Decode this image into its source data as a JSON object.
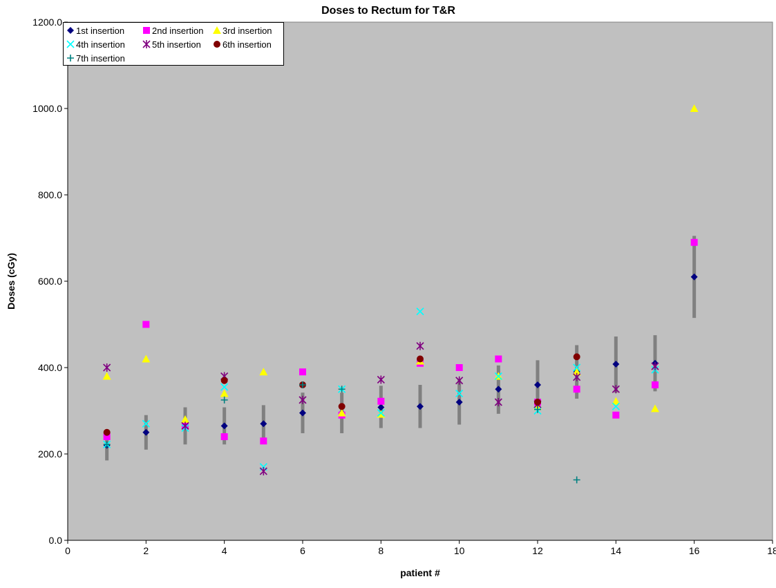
{
  "chart_data": {
    "type": "scatter",
    "title": "Doses to Rectum for T&R",
    "xlabel": "patient #",
    "ylabel": "Doses (cGy)",
    "xlim": [
      0,
      18
    ],
    "ylim": [
      0,
      1200
    ],
    "x_ticks": [
      "0",
      "2",
      "4",
      "6",
      "8",
      "10",
      "12",
      "14",
      "16",
      "18"
    ],
    "y_ticks": [
      "0.0",
      "200.0",
      "400.0",
      "600.0",
      "800.0",
      "1000.0",
      "1200.0"
    ],
    "grid": false,
    "legend_position": "top-left",
    "plot_background": "#c0c0c0",
    "error_bar_color": "#808080",
    "error_bars": [
      {
        "x": 1,
        "low": 185,
        "high": 255
      },
      {
        "x": 2,
        "low": 210,
        "high": 290
      },
      {
        "x": 3,
        "low": 222,
        "high": 308
      },
      {
        "x": 4,
        "low": 222,
        "high": 308
      },
      {
        "x": 5,
        "low": 225,
        "high": 313
      },
      {
        "x": 6,
        "low": 248,
        "high": 342
      },
      {
        "x": 7,
        "low": 248,
        "high": 342
      },
      {
        "x": 8,
        "low": 260,
        "high": 358
      },
      {
        "x": 9,
        "low": 260,
        "high": 360
      },
      {
        "x": 10,
        "low": 268,
        "high": 372
      },
      {
        "x": 11,
        "low": 293,
        "high": 405
      },
      {
        "x": 12,
        "low": 303,
        "high": 417
      },
      {
        "x": 13,
        "low": 328,
        "high": 452
      },
      {
        "x": 14,
        "low": 342,
        "high": 472
      },
      {
        "x": 15,
        "low": 345,
        "high": 475
      },
      {
        "x": 16,
        "low": 515,
        "high": 705
      }
    ],
    "series": [
      {
        "name": "1st insertion",
        "marker": "diamond",
        "color": "#000080",
        "points": [
          [
            1,
            220
          ],
          [
            2,
            250
          ],
          [
            3,
            270
          ],
          [
            4,
            265
          ],
          [
            5,
            270
          ],
          [
            6,
            295
          ],
          [
            7,
            295
          ],
          [
            8,
            308
          ],
          [
            9,
            310
          ],
          [
            10,
            320
          ],
          [
            11,
            350
          ],
          [
            12,
            360
          ],
          [
            13,
            390
          ],
          [
            14,
            408
          ],
          [
            15,
            410
          ],
          [
            16,
            610
          ]
        ]
      },
      {
        "name": "2nd insertion",
        "marker": "square",
        "color": "#ff00ff",
        "points": [
          [
            1,
            240
          ],
          [
            2,
            500
          ],
          [
            3,
            265
          ],
          [
            4,
            240
          ],
          [
            5,
            230
          ],
          [
            6,
            390
          ],
          [
            7,
            290
          ],
          [
            8,
            322
          ],
          [
            9,
            410
          ],
          [
            10,
            400
          ],
          [
            11,
            420
          ],
          [
            12,
            320
          ],
          [
            13,
            350
          ],
          [
            14,
            290
          ],
          [
            15,
            360
          ],
          [
            16,
            690
          ]
        ]
      },
      {
        "name": "3rd insertion",
        "marker": "triangle",
        "color": "#ffff00",
        "points": [
          [
            1,
            380
          ],
          [
            2,
            420
          ],
          [
            3,
            280
          ],
          [
            4,
            340
          ],
          [
            5,
            390
          ],
          [
            7,
            295
          ],
          [
            8,
            292
          ],
          [
            9,
            415
          ],
          [
            11,
            380
          ],
          [
            12,
            310
          ],
          [
            13,
            390
          ],
          [
            14,
            322
          ],
          [
            15,
            305
          ],
          [
            16,
            1000
          ]
        ]
      },
      {
        "name": "4th insertion",
        "marker": "x",
        "color": "#00ffff",
        "points": [
          [
            1,
            222
          ],
          [
            2,
            270
          ],
          [
            3,
            260
          ],
          [
            4,
            355
          ],
          [
            5,
            170
          ],
          [
            7,
            350
          ],
          [
            8,
            295
          ],
          [
            9,
            530
          ],
          [
            10,
            340
          ],
          [
            11,
            380
          ],
          [
            12,
            300
          ],
          [
            13,
            400
          ],
          [
            14,
            310
          ],
          [
            15,
            395
          ]
        ]
      },
      {
        "name": "5th insertion",
        "marker": "star",
        "color": "#800080",
        "points": [
          [
            1,
            400
          ],
          [
            3,
            265
          ],
          [
            4,
            380
          ],
          [
            5,
            160
          ],
          [
            6,
            325
          ],
          [
            8,
            372
          ],
          [
            9,
            450
          ],
          [
            10,
            370
          ],
          [
            11,
            320
          ],
          [
            12,
            315
          ],
          [
            13,
            378
          ],
          [
            14,
            350
          ],
          [
            15,
            403
          ]
        ]
      },
      {
        "name": "6th insertion",
        "marker": "circle",
        "color": "#800000",
        "points": [
          [
            1,
            250
          ],
          [
            4,
            370
          ],
          [
            6,
            360
          ],
          [
            7,
            310
          ],
          [
            9,
            420
          ],
          [
            12,
            320
          ],
          [
            13,
            425
          ]
        ]
      },
      {
        "name": "7th insertion",
        "marker": "plus",
        "color": "#008080",
        "points": [
          [
            1,
            222
          ],
          [
            4,
            325
          ],
          [
            6,
            360
          ],
          [
            7,
            350
          ],
          [
            12,
            303
          ],
          [
            13,
            140
          ]
        ]
      }
    ]
  }
}
